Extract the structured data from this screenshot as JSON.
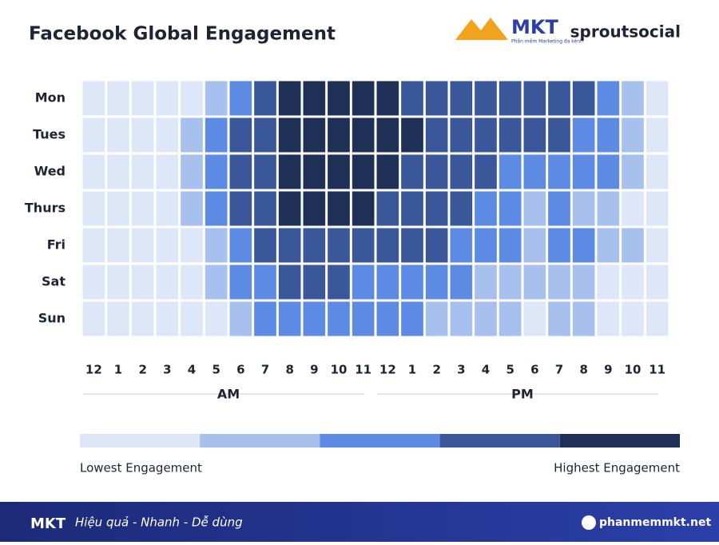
{
  "chart_data": {
    "type": "heatmap",
    "title": "Facebook Global Engagement",
    "logos": [
      "MKT",
      "Phần mềm Marketing đa kênh",
      "sproutsocial"
    ],
    "rows": [
      "Mon",
      "Tues",
      "Wed",
      "Thurs",
      "Fri",
      "Sat",
      "Sun"
    ],
    "categories": [
      "12",
      "1",
      "2",
      "3",
      "4",
      "5",
      "6",
      "7",
      "8",
      "9",
      "10",
      "11",
      "12",
      "1",
      "2",
      "3",
      "4",
      "5",
      "6",
      "7",
      "8",
      "9",
      "10",
      "11"
    ],
    "x_groups": [
      "AM",
      "PM"
    ],
    "values": [
      [
        1,
        1,
        1,
        1,
        1,
        2,
        3,
        4,
        5,
        5,
        5,
        5,
        5,
        4,
        4,
        4,
        4,
        4,
        4,
        4,
        4,
        3,
        2,
        1
      ],
      [
        1,
        1,
        1,
        1,
        2,
        3,
        4,
        4,
        5,
        5,
        5,
        5,
        5,
        5,
        4,
        4,
        4,
        4,
        4,
        4,
        3,
        3,
        2,
        1
      ],
      [
        1,
        1,
        1,
        1,
        2,
        3,
        4,
        4,
        5,
        5,
        5,
        5,
        5,
        4,
        4,
        4,
        4,
        3,
        3,
        3,
        3,
        3,
        2,
        1
      ],
      [
        1,
        1,
        1,
        1,
        2,
        3,
        4,
        4,
        5,
        5,
        5,
        5,
        4,
        4,
        4,
        4,
        3,
        3,
        2,
        3,
        2,
        2,
        1,
        1
      ],
      [
        1,
        1,
        1,
        1,
        1,
        2,
        3,
        4,
        4,
        4,
        4,
        4,
        4,
        4,
        4,
        3,
        3,
        3,
        2,
        3,
        3,
        2,
        2,
        1
      ],
      [
        1,
        1,
        1,
        1,
        1,
        2,
        3,
        3,
        4,
        4,
        4,
        3,
        3,
        3,
        3,
        3,
        2,
        2,
        2,
        2,
        2,
        1,
        1,
        1
      ],
      [
        1,
        1,
        1,
        1,
        1,
        1,
        2,
        3,
        3,
        3,
        3,
        3,
        3,
        3,
        2,
        2,
        2,
        2,
        1,
        2,
        2,
        1,
        1,
        1
      ]
    ],
    "levels": [
      1,
      2,
      3,
      4,
      5
    ],
    "colors": [
      "#dde7f8",
      "#a7c0ee",
      "#5d8ae3",
      "#3a5899",
      "#1f3057"
    ],
    "legend_labels": [
      "Lowest Engagement",
      "Highest Engagement"
    ],
    "footer": {
      "brand": "MKT",
      "slogan": "Hiệu quả - Nhanh - Dễ dùng",
      "website": "phanmemmkt.net"
    }
  }
}
